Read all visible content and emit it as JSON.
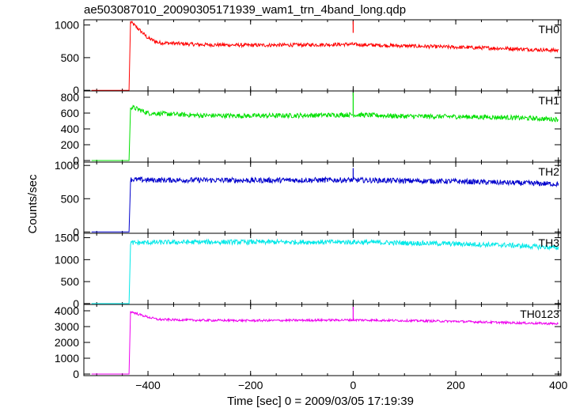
{
  "chart_data": {
    "type": "line",
    "title": "ae503087010_20090305171939_wam1_trn_4band_long.qdp",
    "ylabel": "Counts/sec",
    "xlabel": "Time [sec] 0 = 2009/03/05 17:19:39",
    "xlim": [
      -525,
      405
    ],
    "x_ticks": [
      -400,
      -200,
      0,
      200,
      400
    ],
    "x_tick_labels": [
      "−400",
      "−200",
      "0",
      "200",
      "400"
    ],
    "panels": [
      {
        "name": "TH0",
        "color": "#ff0000",
        "ylim": [
          -10,
          1080
        ],
        "y_ticks": [
          0,
          500,
          1000
        ],
        "y_tick_labels": [
          "0",
          "500",
          "1000"
        ],
        "series_points": [
          [
            -510,
            0
          ],
          [
            -437,
            0
          ],
          [
            -434,
            1050
          ],
          [
            -420,
            950
          ],
          [
            -400,
            800
          ],
          [
            -380,
            730
          ],
          [
            -300,
            700
          ],
          [
            -200,
            690
          ],
          [
            -100,
            695
          ],
          [
            -2,
            705
          ],
          [
            0,
            1060
          ],
          [
            2,
            700
          ],
          [
            100,
            680
          ],
          [
            200,
            660
          ],
          [
            300,
            640
          ],
          [
            400,
            610
          ]
        ],
        "noise": 28,
        "spike": {
          "x": 0,
          "y": 1060
        }
      },
      {
        "name": "TH1",
        "color": "#00e000",
        "ylim": [
          -20,
          880
        ],
        "y_ticks": [
          0,
          200,
          400,
          600,
          800
        ],
        "y_tick_labels": [
          "0",
          "200",
          "400",
          "600",
          "800"
        ],
        "series_points": [
          [
            -510,
            0
          ],
          [
            -437,
            0
          ],
          [
            -434,
            680
          ],
          [
            -420,
            650
          ],
          [
            -400,
            600
          ],
          [
            -300,
            570
          ],
          [
            -200,
            565
          ],
          [
            -100,
            570
          ],
          [
            0,
            580
          ],
          [
            100,
            560
          ],
          [
            200,
            555
          ],
          [
            300,
            545
          ],
          [
            400,
            520
          ]
        ],
        "noise": 30,
        "spike": {
          "x": 0,
          "y": 860
        }
      },
      {
        "name": "TH2",
        "color": "#0000cc",
        "ylim": [
          -20,
          1050
        ],
        "y_ticks": [
          0,
          500,
          1000
        ],
        "y_tick_labels": [
          "0",
          "500",
          "1000"
        ],
        "series_points": [
          [
            -510,
            0
          ],
          [
            -437,
            0
          ],
          [
            -434,
            790
          ],
          [
            -400,
            780
          ],
          [
            -300,
            780
          ],
          [
            -200,
            775
          ],
          [
            -100,
            780
          ],
          [
            0,
            780
          ],
          [
            100,
            770
          ],
          [
            200,
            760
          ],
          [
            300,
            740
          ],
          [
            400,
            720
          ]
        ],
        "noise": 40,
        "spike": {
          "x": 0,
          "y": 960
        }
      },
      {
        "name": "TH3",
        "color": "#00e8e8",
        "ylim": [
          -20,
          1600
        ],
        "y_ticks": [
          0,
          500,
          1000,
          1500
        ],
        "y_tick_labels": [
          "0",
          "500",
          "1000",
          "1500"
        ],
        "series_points": [
          [
            -510,
            0
          ],
          [
            -437,
            0
          ],
          [
            -434,
            1380
          ],
          [
            -400,
            1390
          ],
          [
            -300,
            1400
          ],
          [
            -200,
            1400
          ],
          [
            -100,
            1400
          ],
          [
            0,
            1400
          ],
          [
            100,
            1380
          ],
          [
            200,
            1360
          ],
          [
            300,
            1330
          ],
          [
            400,
            1270
          ]
        ],
        "noise": 55,
        "spike": null
      },
      {
        "name": "TH0123",
        "color": "#ee00ee",
        "ylim": [
          -100,
          4400
        ],
        "y_ticks": [
          0,
          1000,
          2000,
          3000,
          4000
        ],
        "y_tick_labels": [
          "0",
          "1000",
          "2000",
          "3000",
          "4000"
        ],
        "series_points": [
          [
            -510,
            0
          ],
          [
            -437,
            0
          ],
          [
            -434,
            3950
          ],
          [
            -420,
            3800
          ],
          [
            -400,
            3600
          ],
          [
            -380,
            3450
          ],
          [
            -300,
            3400
          ],
          [
            -200,
            3380
          ],
          [
            -100,
            3400
          ],
          [
            0,
            3420
          ],
          [
            100,
            3380
          ],
          [
            200,
            3330
          ],
          [
            300,
            3250
          ],
          [
            400,
            3180
          ]
        ],
        "noise": 70,
        "spike": {
          "x": 0,
          "y": 4250
        }
      }
    ]
  }
}
